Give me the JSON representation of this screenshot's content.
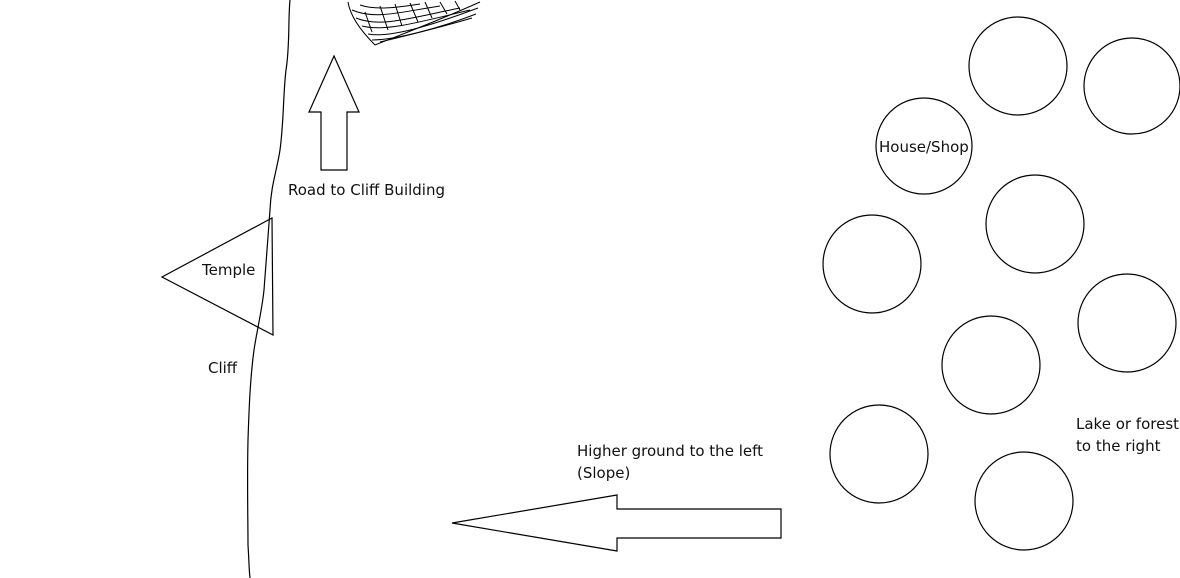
{
  "labels": {
    "road": "Road to Cliff Building",
    "temple": "Temple",
    "cliff": "Cliff",
    "house": "House/Shop",
    "slope_line1": "Higher ground to the left",
    "slope_line2": "(Slope)",
    "lake_line1": "Lake or forest",
    "lake_line2": "to the right"
  }
}
